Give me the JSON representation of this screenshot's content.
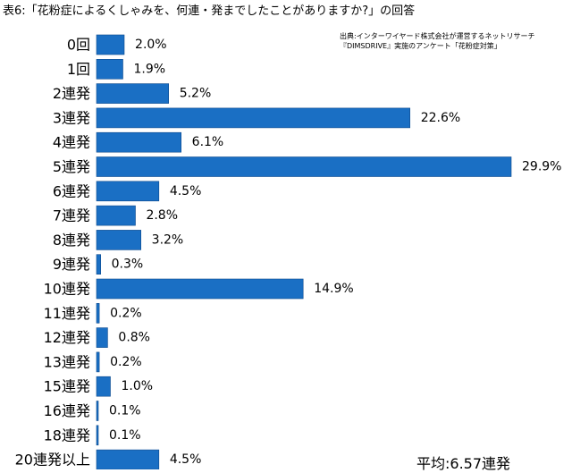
{
  "chart_data": {
    "type": "bar",
    "orientation": "horizontal",
    "title": "表6:「花粉症によるくしゃみを、何連・発までしたことがありますか?」の回答",
    "source": [
      "出典:インターワイヤード株式会社が運営するネットリサーチ",
      "『DIMSDRIVE』実施のアンケート「花粉症対策」"
    ],
    "categories": [
      "0回",
      "1回",
      "2連発",
      "3連発",
      "4連発",
      "5連発",
      "6連発",
      "7連発",
      "8連発",
      "9連発",
      "10連発",
      "11連発",
      "12連発",
      "13連発",
      "15連発",
      "16連発",
      "18連発",
      "20連発以上"
    ],
    "values": [
      2.0,
      1.9,
      5.2,
      22.6,
      6.1,
      29.9,
      4.5,
      2.8,
      3.2,
      0.3,
      14.9,
      0.2,
      0.8,
      0.2,
      1.0,
      0.1,
      0.1,
      4.5
    ],
    "value_labels": [
      "2.0%",
      "1.9%",
      "5.2%",
      "22.6%",
      "6.1%",
      "29.9%",
      "4.5%",
      "2.8%",
      "3.2%",
      "0.3%",
      "14.9%",
      "0.2%",
      "0.8%",
      "0.2%",
      "1.0%",
      "0.1%",
      "0.1%",
      "4.5%"
    ],
    "average_label": "平均:6.57連発",
    "xlim": [
      0,
      29.9
    ],
    "grid": false,
    "bar_color": "#1a6fc4"
  }
}
